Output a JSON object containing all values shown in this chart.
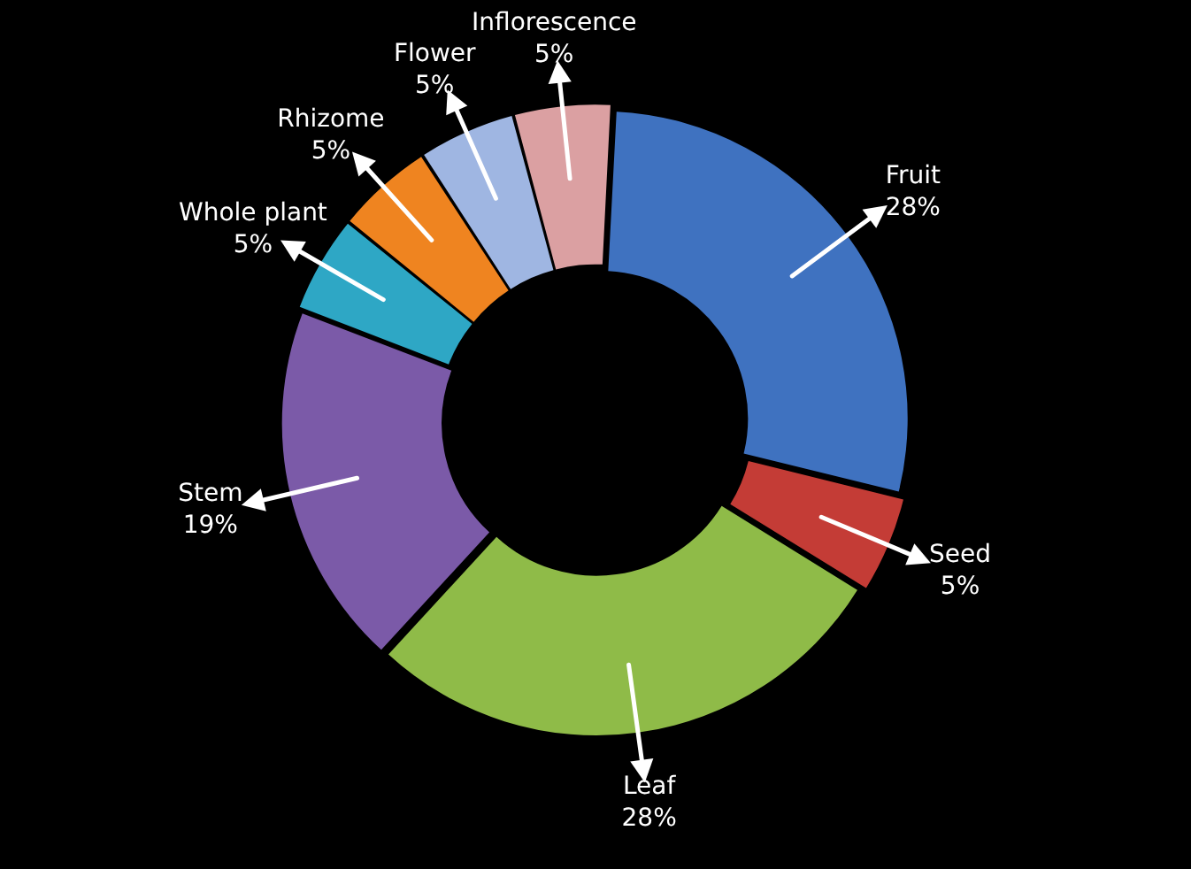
{
  "chart_data": {
    "type": "donut",
    "categories": [
      "Fruit",
      "Seed",
      "Leaf",
      "Stem",
      "Whole plant",
      "Rhizome",
      "Flower",
      "Inflorescence"
    ],
    "values": [
      28,
      5,
      28,
      19,
      5,
      5,
      5,
      5
    ],
    "value_labels": [
      "28%",
      "5%",
      "28%",
      "19%",
      "5%",
      "5%",
      "5%",
      "5%"
    ],
    "colors": [
      "#3f72c0",
      "#c43c36",
      "#8fbb48",
      "#7b5aa8",
      "#2ea7c5",
      "#ef8420",
      "#9fb6e2",
      "#dba0a2"
    ],
    "legend": false
  }
}
